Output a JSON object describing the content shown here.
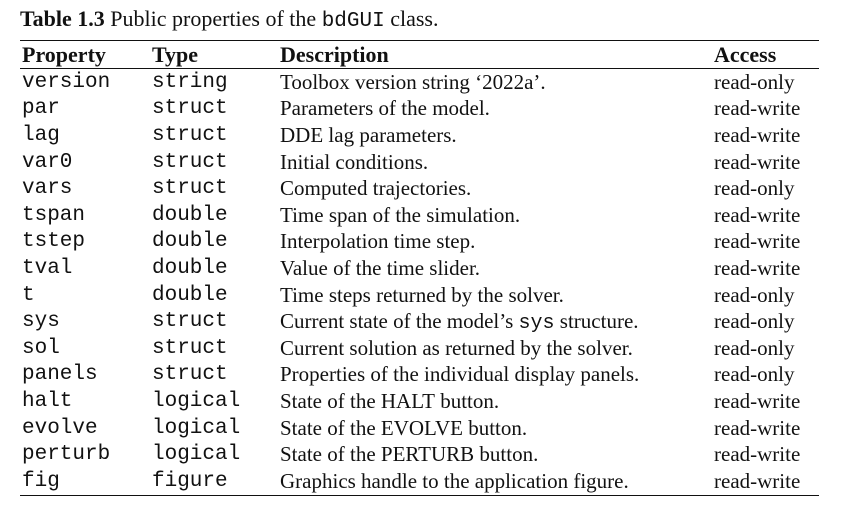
{
  "caption": {
    "label": "Table 1.3",
    "text_before": "Public properties of the",
    "class_name": "bdGUI",
    "text_after": "class."
  },
  "table": {
    "headers": [
      "Property",
      "Type",
      "Description",
      "Access"
    ],
    "rows": [
      {
        "property": "version",
        "type": "string",
        "desc": [
          "Toolbox version string ‘2022a’."
        ],
        "access": "read-only"
      },
      {
        "property": "par",
        "type": "struct",
        "desc": [
          "Parameters of the model."
        ],
        "access": "read-write"
      },
      {
        "property": "lag",
        "type": "struct",
        "desc": [
          "DDE lag parameters."
        ],
        "access": "read-write"
      },
      {
        "property": "var0",
        "type": "struct",
        "desc": [
          "Initial conditions."
        ],
        "access": "read-write"
      },
      {
        "property": "vars",
        "type": "struct",
        "desc": [
          "Computed trajectories."
        ],
        "access": "read-only"
      },
      {
        "property": "tspan",
        "type": "double",
        "desc": [
          "Time span of the simulation."
        ],
        "access": "read-write"
      },
      {
        "property": "tstep",
        "type": "double",
        "desc": [
          "Interpolation time step."
        ],
        "access": "read-write"
      },
      {
        "property": "tval",
        "type": "double",
        "desc": [
          "Value of the time slider."
        ],
        "access": "read-write"
      },
      {
        "property": "t",
        "type": "double",
        "desc": [
          "Time steps returned by the solver."
        ],
        "access": "read-only"
      },
      {
        "property": "sys",
        "type": "struct",
        "desc": [
          "Current state of the model’s ",
          "sys",
          " structure."
        ],
        "access": "read-only"
      },
      {
        "property": "sol",
        "type": "struct",
        "desc": [
          "Current solution as returned by the solver."
        ],
        "access": "read-only"
      },
      {
        "property": "panels",
        "type": "struct",
        "desc": [
          "Properties of the individual display panels."
        ],
        "access": "read-only"
      },
      {
        "property": "halt",
        "type": "logical",
        "desc": [
          "State of the ",
          "HALT",
          " button."
        ],
        "access": "read-write"
      },
      {
        "property": "evolve",
        "type": "logical",
        "desc": [
          "State of the ",
          "EVOLVE",
          " button."
        ],
        "access": "read-write"
      },
      {
        "property": "perturb",
        "type": "logical",
        "desc": [
          "State of the ",
          "PERTURB",
          " button."
        ],
        "access": "read-write"
      },
      {
        "property": "fig",
        "type": "figure",
        "desc": [
          "Graphics handle to the application figure."
        ],
        "access": "read-write"
      }
    ]
  }
}
